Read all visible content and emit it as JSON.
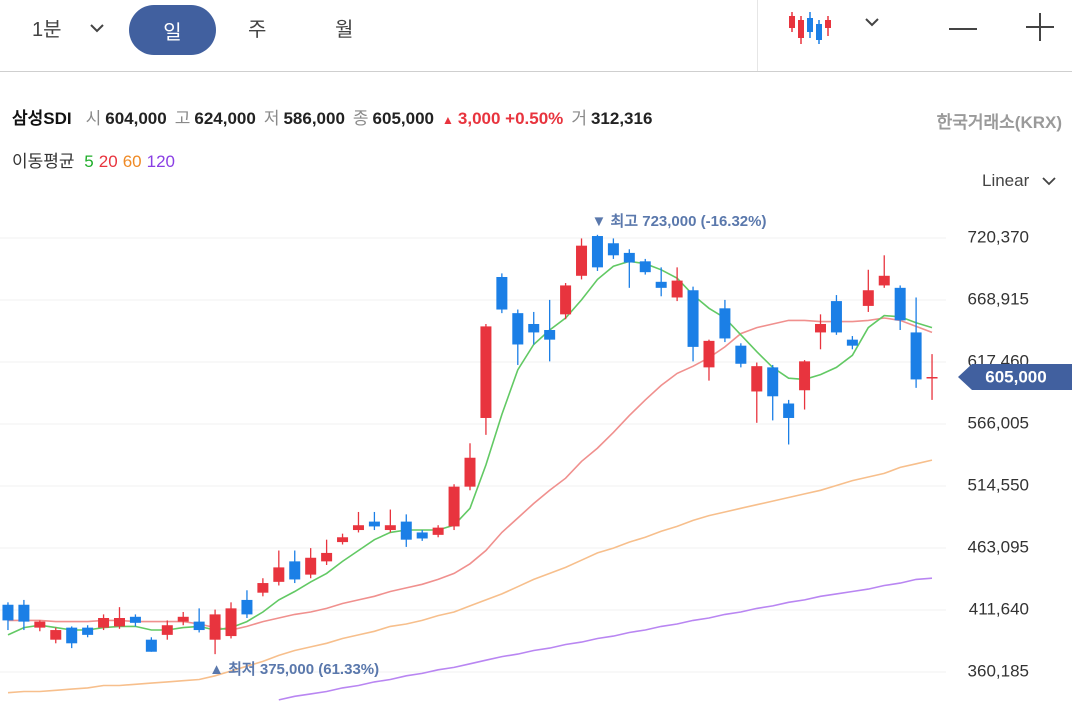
{
  "toolbar": {
    "interval": "1분",
    "tabs": [
      "일",
      "주",
      "월"
    ]
  },
  "quote": {
    "name": "삼성SDI",
    "fields": [
      {
        "label": "시",
        "value": "604,000"
      },
      {
        "label": "고",
        "value": "624,000"
      },
      {
        "label": "저",
        "value": "586,000"
      },
      {
        "label": "종",
        "value": "605,000"
      }
    ],
    "change_mark": "▲",
    "change": "3,000",
    "change_pct": "+0.50%",
    "volume_label": "거",
    "volume": "312,316",
    "exchange": "한국거래소(KRX)"
  },
  "ma_legend": "이동평균",
  "scale_mode": "Linear",
  "chart_data": {
    "type": "candlestick",
    "up_color": "#e8343e",
    "down_color": "#1b7fe6",
    "grid": true,
    "ylim": [
      335288,
      751898
    ],
    "yticks": [
      {
        "value": 360185,
        "label": "360,185"
      },
      {
        "value": 411640,
        "label": "411,640"
      },
      {
        "value": 463095,
        "label": "463,095"
      },
      {
        "value": 514550,
        "label": "514,550"
      },
      {
        "value": 566005,
        "label": "566,005"
      },
      {
        "value": 617460,
        "label": "617,460"
      },
      {
        "value": 668915,
        "label": "668,915"
      },
      {
        "value": 720370,
        "label": "720,370"
      }
    ],
    "open": [
      416000,
      416000,
      397000,
      387000,
      397000,
      397000,
      397000,
      398000,
      406000,
      387000,
      391000,
      402000,
      402000,
      387000,
      390000,
      420000,
      426000,
      435000,
      452000,
      441000,
      452000,
      468000,
      478000,
      485000,
      478000,
      485000,
      476000,
      474000,
      481000,
      514000,
      571000,
      688000,
      658000,
      649000,
      644000,
      657000,
      689000,
      722000,
      716000,
      708000,
      701000,
      684000,
      671000,
      677000,
      613000,
      662000,
      631000,
      593000,
      613000,
      583000,
      594000,
      642000,
      668000,
      636000,
      664000,
      681000,
      679000,
      642000,
      604000
    ],
    "high": [
      418000,
      420000,
      403000,
      397000,
      398000,
      399000,
      408000,
      414000,
      408000,
      389000,
      403000,
      410000,
      413000,
      412000,
      418000,
      428000,
      438000,
      461000,
      461000,
      463000,
      470000,
      475000,
      493000,
      493000,
      495000,
      491000,
      478000,
      482000,
      516000,
      550000,
      649000,
      691000,
      661000,
      659000,
      669000,
      683000,
      720000,
      723000,
      720000,
      711000,
      703000,
      696000,
      696000,
      680000,
      636000,
      669000,
      633000,
      617000,
      615000,
      586000,
      619000,
      657000,
      673000,
      639000,
      694000,
      706000,
      681000,
      671000,
      624000
    ],
    "low": [
      395000,
      395000,
      394000,
      384000,
      380000,
      389000,
      395000,
      396000,
      398000,
      377000,
      387000,
      399000,
      393000,
      375000,
      388000,
      405000,
      423000,
      432000,
      434000,
      438000,
      449000,
      466000,
      476000,
      478000,
      476000,
      464000,
      469000,
      472000,
      478000,
      511000,
      557000,
      658000,
      615000,
      632000,
      618000,
      653000,
      686000,
      693000,
      703000,
      679000,
      690000,
      672000,
      668000,
      618000,
      602000,
      634000,
      613000,
      567000,
      569000,
      549000,
      578000,
      628000,
      640000,
      628000,
      659000,
      679000,
      644000,
      596000,
      586000
    ],
    "close": [
      403000,
      402000,
      402000,
      395000,
      384000,
      391000,
      405000,
      405000,
      401000,
      377000,
      399000,
      406000,
      395000,
      408000,
      413000,
      408000,
      434000,
      447000,
      437000,
      455000,
      459000,
      472000,
      482000,
      481000,
      482000,
      470000,
      471000,
      480000,
      514000,
      538000,
      647000,
      661000,
      632000,
      642000,
      636000,
      681000,
      714000,
      696000,
      706000,
      700000,
      692000,
      679000,
      685000,
      630000,
      635000,
      637000,
      616000,
      614000,
      589000,
      571000,
      618000,
      649000,
      642000,
      631000,
      677000,
      689000,
      652000,
      603000,
      605000
    ],
    "series": [
      {
        "name": "120",
        "color": "#b986f2",
        "text_color": "#8a3fe4",
        "values": [
          null,
          null,
          null,
          null,
          null,
          null,
          null,
          null,
          null,
          null,
          null,
          null,
          null,
          null,
          null,
          null,
          null,
          337000,
          340000,
          342000,
          344000,
          347000,
          349000,
          352000,
          354000,
          357000,
          359000,
          362000,
          364000,
          367000,
          370000,
          373000,
          375000,
          378000,
          380000,
          383000,
          385000,
          388000,
          390000,
          393000,
          395000,
          398000,
          400000,
          403000,
          405000,
          408000,
          410000,
          413000,
          415000,
          418000,
          420000,
          423000,
          425000,
          427000,
          429000,
          432000,
          434000,
          437000,
          438000
        ]
      },
      {
        "name": "60",
        "color": "#f7bf8c",
        "text_color": "#ef8a25",
        "values": [
          343000,
          344000,
          344000,
          345000,
          346000,
          347000,
          349000,
          349000,
          350000,
          351000,
          352000,
          353000,
          354000,
          357000,
          361000,
          365000,
          369000,
          374000,
          378000,
          381000,
          384000,
          388000,
          391000,
          394000,
          398000,
          400000,
          403000,
          407000,
          410000,
          415000,
          420000,
          425000,
          431000,
          437000,
          442000,
          447000,
          453000,
          459000,
          463000,
          468000,
          472000,
          477000,
          481000,
          486000,
          490000,
          493000,
          496000,
          499000,
          502000,
          505000,
          508000,
          511000,
          515000,
          519000,
          522000,
          525000,
          530000,
          533000,
          536000
        ]
      },
      {
        "name": "20",
        "color": "#f0908e",
        "text_color": "#e8343e",
        "values": [
          403000,
          403000,
          403000,
          402000,
          402000,
          402000,
          403000,
          403000,
          402000,
          402000,
          402000,
          402000,
          400000,
          397000,
          395000,
          398000,
          402000,
          405000,
          408000,
          410000,
          413000,
          417000,
          420000,
          423000,
          427000,
          430000,
          433000,
          437000,
          442000,
          450000,
          461000,
          476000,
          488000,
          500000,
          511000,
          521000,
          535000,
          546000,
          559000,
          573000,
          586000,
          598000,
          608000,
          614000,
          621000,
          630000,
          641000,
          646000,
          649000,
          652000,
          652000,
          651000,
          651000,
          651000,
          652000,
          654000,
          652000,
          647000,
          642000
        ]
      },
      {
        "name": "5",
        "color": "#62c964",
        "text_color": "#1fae2a",
        "values": [
          391000,
          397000,
          399000,
          397000,
          395000,
          395000,
          397000,
          398000,
          398000,
          395000,
          395000,
          397000,
          398000,
          395000,
          397000,
          402000,
          410000,
          420000,
          427000,
          435000,
          442000,
          452000,
          461000,
          470000,
          476000,
          478000,
          478000,
          478000,
          482000,
          496000,
          532000,
          574000,
          611000,
          632000,
          644000,
          654000,
          669000,
          686000,
          697000,
          701000,
          699000,
          694000,
          687000,
          673000,
          662000,
          654000,
          640000,
          626000,
          613000,
          604000,
          603000,
          607000,
          613000,
          623000,
          646000,
          656000,
          655000,
          650000,
          646000
        ]
      }
    ],
    "high_label": "▼ 최고 723,000 (-16.32%)",
    "low_label": "▲ 최저 375,000 (61.33%)",
    "last_label": "605,000"
  }
}
